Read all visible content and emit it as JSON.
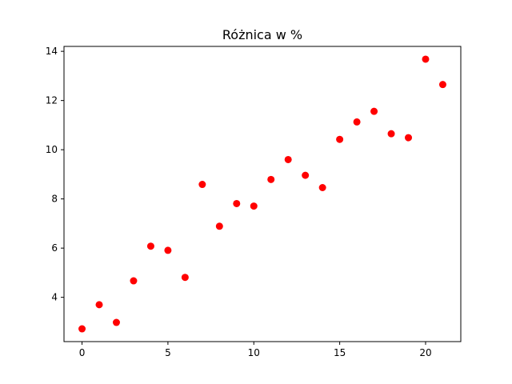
{
  "chart_data": {
    "type": "scatter",
    "title": "Różnica w %",
    "xlabel": "",
    "ylabel": "",
    "xlim": [
      -1.05,
      22.05
    ],
    "ylim": [
      2.2,
      14.2
    ],
    "x_ticks": [
      0,
      5,
      10,
      15,
      20
    ],
    "y_ticks": [
      4,
      6,
      8,
      10,
      12,
      14
    ],
    "grid": false,
    "series": [
      {
        "color": "#ff0000",
        "marker": "circle",
        "x": [
          0,
          1,
          2,
          3,
          4,
          5,
          6,
          7,
          8,
          9,
          10,
          11,
          12,
          13,
          14,
          15,
          16,
          17,
          18,
          19,
          20,
          21
        ],
        "y": [
          2.72,
          3.7,
          2.98,
          4.67,
          6.08,
          5.91,
          4.81,
          8.59,
          6.89,
          7.81,
          7.71,
          8.79,
          9.6,
          8.96,
          8.46,
          10.42,
          11.13,
          11.56,
          10.65,
          10.49,
          13.68,
          12.65
        ]
      }
    ]
  }
}
